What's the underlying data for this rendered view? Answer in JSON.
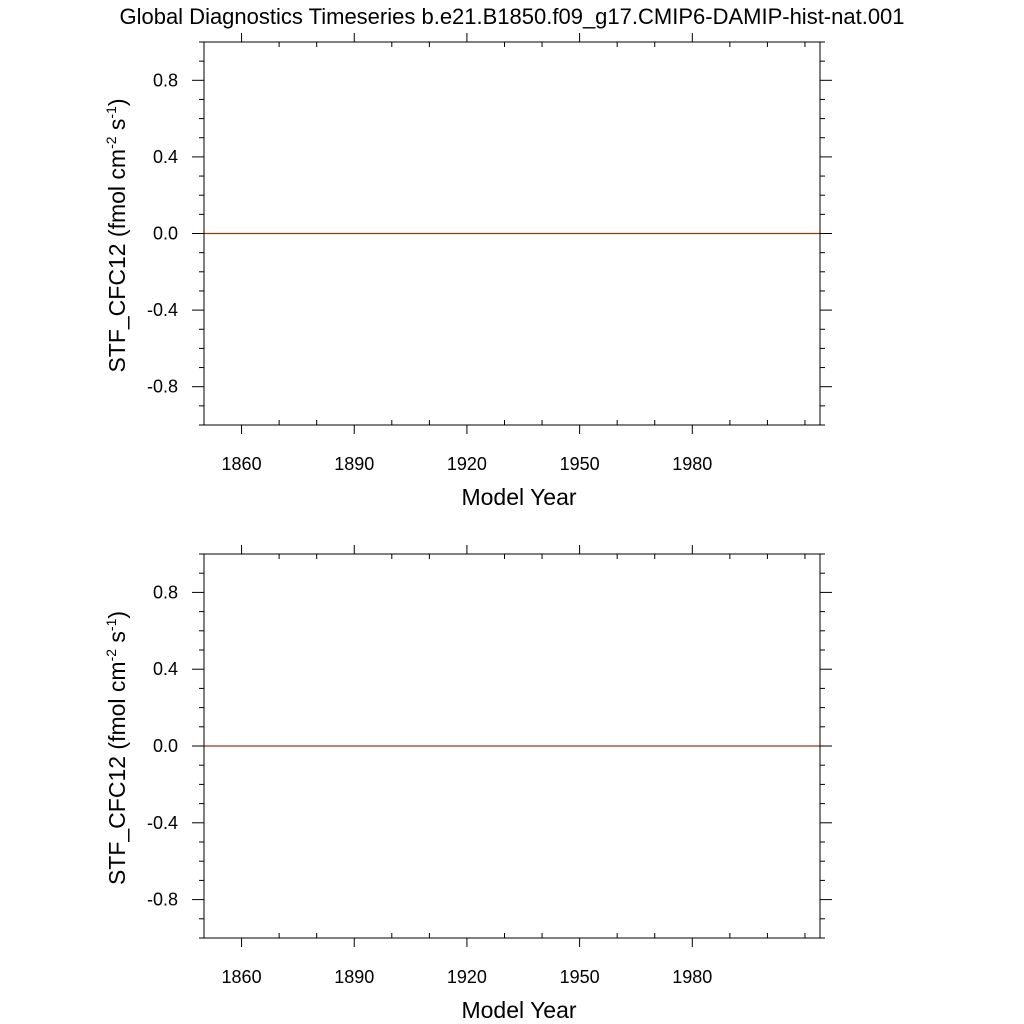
{
  "title": "Global Diagnostics Timeseries b.e21.B1850.f09_g17.CMIP6-DAMIP-hist-nat.001",
  "colors": {
    "series": "#8b3a1a",
    "axis": "#000000",
    "background": "#ffffff"
  },
  "chart_data": [
    {
      "type": "line",
      "title": "",
      "xlabel": "Model Year",
      "ylabel": "STF_CFC12 (fmol cm-2 s-1)",
      "ylabel_parts": {
        "main": "STF_CFC12 (fmol cm",
        "exp1": "-2",
        "mid": " s",
        "exp2": "-1",
        "end": ")"
      },
      "xlim": [
        1850,
        2014
      ],
      "ylim": [
        -1.0,
        1.0
      ],
      "x_ticks": [
        1860,
        1890,
        1920,
        1950,
        1980
      ],
      "x_tick_labels": [
        "1860",
        "1890",
        "1920",
        "1950",
        "1980"
      ],
      "y_ticks": [
        0.8,
        0.4,
        0.0,
        -0.4,
        -0.8
      ],
      "y_tick_labels": [
        "0.8",
        "0.4",
        "0.0",
        "-0.4",
        "-0.8"
      ],
      "x_minor_step": 10,
      "y_minor_step": 0.1,
      "grid": false,
      "series": [
        {
          "x": [
            1850,
            2014
          ],
          "y": [
            0.0,
            0.0
          ]
        }
      ]
    },
    {
      "type": "line",
      "title": "",
      "xlabel": "Model Year",
      "ylabel": "STF_CFC12 (fmol cm-2 s-1)",
      "ylabel_parts": {
        "main": "STF_CFC12 (fmol cm",
        "exp1": "-2",
        "mid": " s",
        "exp2": "-1",
        "end": ")"
      },
      "xlim": [
        1850,
        2014
      ],
      "ylim": [
        -1.0,
        1.0
      ],
      "x_ticks": [
        1860,
        1890,
        1920,
        1950,
        1980
      ],
      "x_tick_labels": [
        "1860",
        "1890",
        "1920",
        "1950",
        "1980"
      ],
      "y_ticks": [
        0.8,
        0.4,
        0.0,
        -0.4,
        -0.8
      ],
      "y_tick_labels": [
        "0.8",
        "0.4",
        "0.0",
        "-0.4",
        "-0.8"
      ],
      "x_minor_step": 10,
      "y_minor_step": 0.1,
      "grid": false,
      "series": [
        {
          "x": [
            1850,
            2014
          ],
          "y": [
            0.0,
            0.0
          ]
        }
      ]
    }
  ]
}
